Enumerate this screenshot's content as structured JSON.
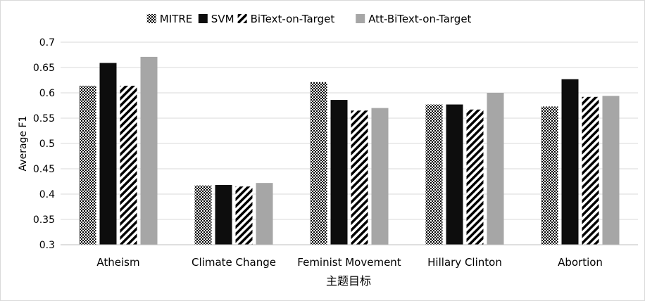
{
  "chart_data": {
    "type": "bar",
    "categories": [
      "Atheism",
      "Climate Change",
      "Feminist Movement",
      "Hillary Clinton",
      "Abortion"
    ],
    "series": [
      {
        "name": "MITRE",
        "values": [
          0.614,
          0.417,
          0.621,
          0.577,
          0.573
        ],
        "fill": "checker",
        "color": "#000000"
      },
      {
        "name": "SVM",
        "values": [
          0.659,
          0.418,
          0.586,
          0.577,
          0.627
        ],
        "fill": "solid",
        "color": "#0d0d0d"
      },
      {
        "name": "BiText-on-Target",
        "values": [
          0.614,
          0.415,
          0.565,
          0.567,
          0.592
        ],
        "fill": "diagonal",
        "color": "#000000"
      },
      {
        "name": "Att-BiText-on-Target",
        "values": [
          0.671,
          0.422,
          0.57,
          0.6,
          0.594
        ],
        "fill": "solid",
        "color": "#a6a6a6"
      }
    ],
    "title": "",
    "xlabel": "主题目标",
    "ylabel": "Average F1",
    "ylim": [
      0.3,
      0.7
    ],
    "yticks": [
      "0.3",
      "0.35",
      "0.4",
      "0.45",
      "0.5",
      "0.55",
      "0.6",
      "0.65",
      "0.7"
    ],
    "grid": true,
    "legend_position": "top"
  }
}
